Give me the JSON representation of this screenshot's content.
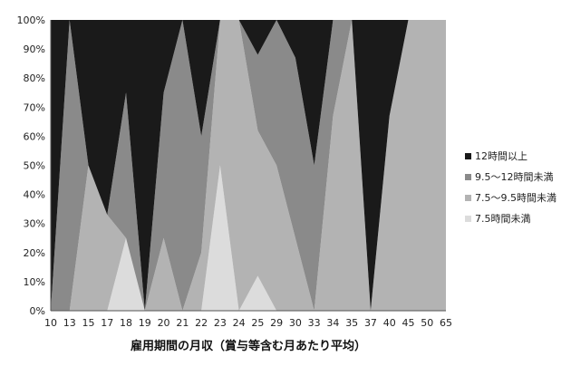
{
  "chart_data": {
    "type": "area",
    "stacked": true,
    "normalized": true,
    "categories": [
      "10",
      "13",
      "15",
      "17",
      "18",
      "19",
      "20",
      "21",
      "22",
      "23",
      "24",
      "25",
      "29",
      "30",
      "33",
      "34",
      "35",
      "37",
      "40",
      "45",
      "50",
      "65"
    ],
    "series": [
      {
        "name": "7.5時間未満",
        "color": "#dcdcdc",
        "values": [
          0,
          0,
          0,
          0,
          25,
          0,
          0,
          0,
          0,
          50,
          0,
          12,
          0,
          0,
          0,
          0,
          0,
          0,
          0,
          0,
          0,
          0
        ]
      },
      {
        "name": "7.5～9.5時間未満",
        "color": "#b3b3b3",
        "values": [
          0,
          0,
          50,
          33,
          0,
          0,
          25,
          0,
          20,
          50,
          100,
          50,
          50,
          25,
          0,
          67,
          100,
          0,
          67,
          100,
          100,
          100
        ]
      },
      {
        "name": "9.5～12時間未満",
        "color": "#8a8a8a",
        "values": [
          0,
          100,
          0,
          0,
          50,
          0,
          50,
          100,
          40,
          0,
          0,
          26,
          50,
          62,
          50,
          33,
          0,
          0,
          0,
          0,
          0,
          0
        ]
      },
      {
        "name": "12時間以上",
        "color": "#1a1a1a",
        "values": [
          100,
          0,
          50,
          67,
          25,
          100,
          25,
          0,
          40,
          0,
          0,
          12,
          0,
          13,
          50,
          0,
          0,
          100,
          33,
          0,
          0,
          0
        ]
      }
    ],
    "yticks": [
      "0%",
      "10%",
      "20%",
      "30%",
      "40%",
      "50%",
      "60%",
      "70%",
      "80%",
      "90%",
      "100%"
    ],
    "xlabel": "雇用期間の月収（賞与等含む月あたり平均）",
    "ylim": [
      0,
      100
    ],
    "legend_position": "right",
    "grid": false
  }
}
